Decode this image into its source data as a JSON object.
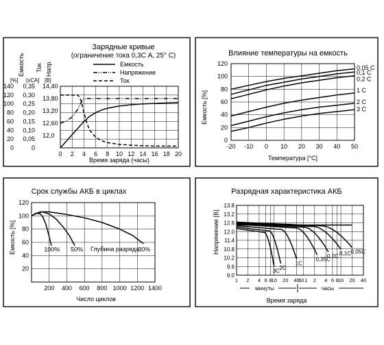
{
  "chart_data": [
    {
      "id": "charge",
      "type": "line",
      "title": "Зарядные кривые",
      "subtitle": "(ограничение тока 0,3С А, 25° С)",
      "xlabel": "Время заряда (часы)",
      "x_ticks": [
        "0",
        "2",
        "4",
        "6",
        "8",
        "10",
        "12",
        "14",
        "16",
        "18",
        "20"
      ],
      "xlim": [
        0,
        20
      ],
      "y_axes": [
        {
          "label": "Емкость",
          "unit": "[%]",
          "ticks": [
            "140",
            "120",
            "100",
            "80",
            "60",
            "40",
            "20",
            "0"
          ],
          "lim": [
            0,
            140
          ]
        },
        {
          "label": "Ток",
          "unit": "[хСА]",
          "ticks": [
            "0,35",
            "0,30",
            "0,25",
            "0,20",
            "0,15",
            "0,10",
            "0,05",
            "0"
          ],
          "lim": [
            0,
            0.35
          ]
        },
        {
          "label": "Напр.",
          "unit": "[В]",
          "ticks": [
            "14,40",
            "13,80",
            "13,20",
            "12,60",
            "12,0"
          ],
          "lim": [
            11.4,
            14.4
          ]
        }
      ],
      "legend": [
        "Емкость",
        "Напряжение",
        "Ток"
      ],
      "series": [
        {
          "name": "Емкость",
          "axis": 0,
          "style": "solid",
          "x": [
            0,
            1,
            2,
            3,
            4,
            5,
            6,
            7,
            8,
            10,
            12,
            14,
            16,
            18,
            20
          ],
          "y": [
            0,
            15,
            30,
            45,
            60,
            72,
            80,
            86,
            90,
            95,
            98,
            100,
            101,
            102,
            103
          ]
        },
        {
          "name": "Напряжение",
          "axis": 2,
          "style": "dashdot",
          "x": [
            0,
            1,
            2,
            3,
            3.5,
            4,
            20
          ],
          "y": [
            12.6,
            12.7,
            12.9,
            13.3,
            13.6,
            13.8,
            13.8
          ]
        },
        {
          "name": "Ток",
          "axis": 1,
          "style": "dashed",
          "x": [
            0,
            1,
            2,
            3,
            3.5,
            4,
            4.5,
            5,
            6,
            7,
            8,
            10,
            12,
            14,
            16,
            18,
            20
          ],
          "y": [
            0.3,
            0.3,
            0.3,
            0.3,
            0.27,
            0.2,
            0.14,
            0.1,
            0.06,
            0.04,
            0.03,
            0.02,
            0.015,
            0.012,
            0.01,
            0.01,
            0.01
          ]
        }
      ]
    },
    {
      "id": "temperature",
      "type": "line",
      "title": "Влияние температуры на емкость",
      "xlabel": "Температура [°С]",
      "ylabel": "Емкость [%]",
      "xlim": [
        -20,
        50
      ],
      "ylim": [
        0,
        120
      ],
      "x_ticks": [
        "-20",
        "-10",
        "0",
        "10",
        "20",
        "30",
        "40",
        "50"
      ],
      "y_ticks": [
        "120",
        "100",
        "80",
        "60",
        "40",
        "20",
        "0"
      ],
      "series": [
        {
          "name": "0,05 С",
          "x": [
            -20,
            -10,
            0,
            10,
            20,
            30,
            40,
            50
          ],
          "y": [
            80,
            86,
            92,
            97,
            101,
            105,
            109,
            112
          ]
        },
        {
          "name": "0,1 С",
          "x": [
            -20,
            -10,
            0,
            10,
            20,
            30,
            40,
            50
          ],
          "y": [
            72,
            79,
            86,
            91,
            96,
            100,
            104,
            107
          ]
        },
        {
          "name": "0,2 С",
          "x": [
            -20,
            -10,
            0,
            10,
            20,
            30,
            40,
            50
          ],
          "y": [
            65,
            72,
            79,
            85,
            90,
            94,
            98,
            101
          ]
        },
        {
          "name": "1 С",
          "x": [
            -20,
            -10,
            0,
            10,
            20,
            30,
            40,
            50
          ],
          "y": [
            38,
            45,
            52,
            58,
            63,
            67,
            71,
            74
          ]
        },
        {
          "name": "2 С",
          "x": [
            -20,
            -10,
            0,
            10,
            20,
            30,
            40,
            50
          ],
          "y": [
            23,
            30,
            37,
            43,
            48,
            52,
            55,
            58
          ]
        },
        {
          "name": "3 С",
          "x": [
            -20,
            -10,
            0,
            10,
            20,
            30,
            40,
            50
          ],
          "y": [
            14,
            20,
            27,
            33,
            38,
            42,
            45,
            48
          ]
        }
      ]
    },
    {
      "id": "cycles",
      "type": "line",
      "title": "Срок службы АКБ в циклах",
      "xlabel": "Число циклов",
      "ylabel": "Емкость [%]",
      "xlim": [
        0,
        1400
      ],
      "ylim": [
        0,
        120
      ],
      "x_ticks": [
        "200",
        "400",
        "600",
        "800",
        "1000",
        "1200",
        "1400"
      ],
      "y_ticks": [
        "120",
        "100",
        "80",
        "60",
        "40",
        "20"
      ],
      "annotation": "Глубина разряда",
      "series": [
        {
          "name": "100%",
          "x": [
            0,
            50,
            100,
            130,
            160,
            190,
            210,
            225
          ],
          "y": [
            100,
            104,
            103,
            98,
            88,
            74,
            63,
            55
          ]
        },
        {
          "name": "50%",
          "x": [
            0,
            60,
            120,
            200,
            280,
            360,
            430,
            470,
            490
          ],
          "y": [
            100,
            104,
            106,
            103,
            95,
            83,
            70,
            60,
            55
          ]
        },
        {
          "name": "30%",
          "x": [
            0,
            60,
            100,
            200,
            400,
            600,
            800,
            1000,
            1150,
            1230,
            1270
          ],
          "y": [
            100,
            104,
            106,
            106,
            102,
            97,
            90,
            80,
            70,
            62,
            58
          ]
        }
      ]
    },
    {
      "id": "discharge",
      "type": "line",
      "title": "Разрядная характеристика АКБ",
      "xlabel": "Время заряда",
      "ylabel": "Напряжение [В]",
      "ylim": [
        9.0,
        13.8
      ],
      "y_ticks": [
        "13.8",
        "13.2",
        "12.6",
        "12.0",
        "11.4",
        "10.8",
        "10.2",
        "9.6",
        "9.0"
      ],
      "x_ticks": [
        "1",
        "2",
        "4",
        "6",
        "8",
        "10",
        "20",
        "40",
        "60",
        "1",
        "2",
        "4",
        "6",
        "8",
        "10",
        "20",
        "40"
      ],
      "x_segments": [
        "минуты",
        "часы"
      ],
      "series": [
        {
          "name": "3С",
          "tEnd": 10,
          "vStart": 12.2,
          "vEnd": 9.6
        },
        {
          "name": "2С",
          "tEnd": 15,
          "vStart": 12.3,
          "vEnd": 9.8
        },
        {
          "name": "1С",
          "tEnd": 40,
          "vStart": 12.4,
          "vEnd": 10.1
        },
        {
          "name": "0,35С",
          "tEnd": 140,
          "vStart": 12.5,
          "vEnd": 10.4
        },
        {
          "name": "0,2С",
          "tEnd": 280,
          "vStart": 12.55,
          "vEnd": 10.6
        },
        {
          "name": "0,1С",
          "tEnd": 600,
          "vStart": 12.6,
          "vEnd": 10.8
        },
        {
          "name": "0,05С",
          "tEnd": 1200,
          "vStart": 12.65,
          "vEnd": 10.9
        }
      ]
    }
  ]
}
